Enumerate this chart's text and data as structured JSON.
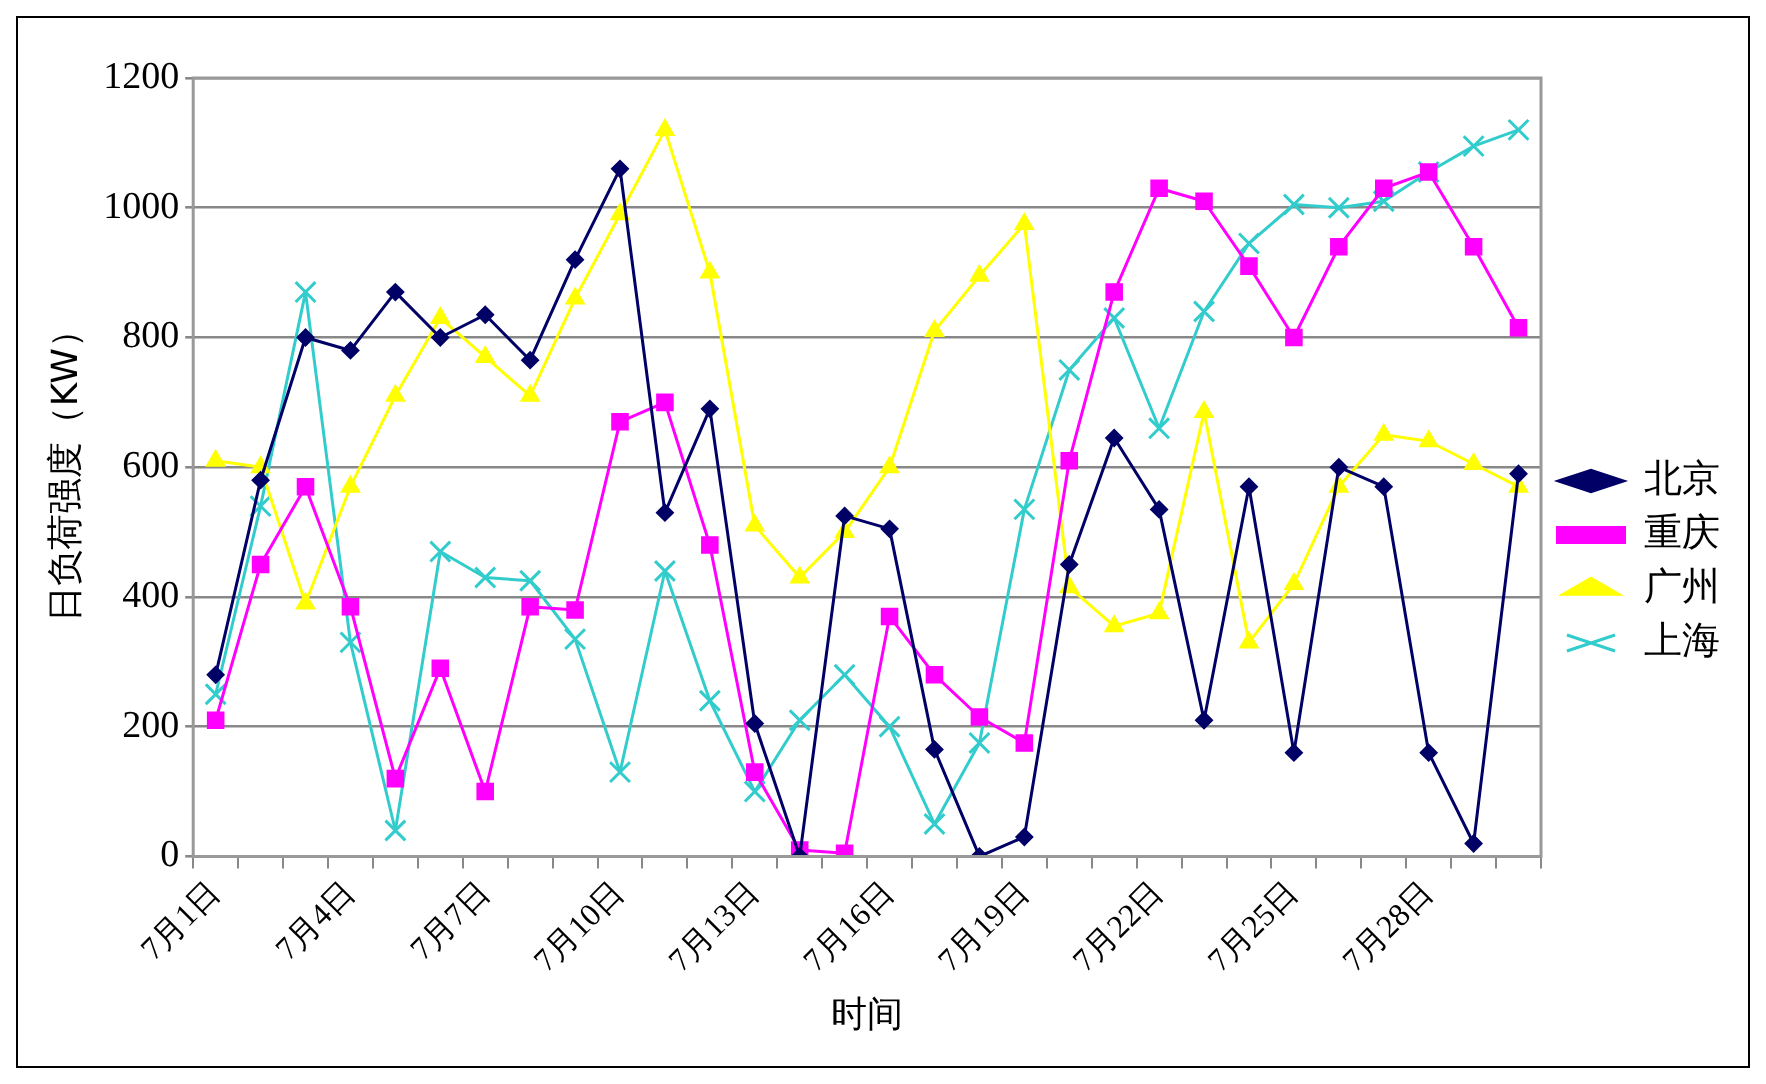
{
  "chart_data": {
    "type": "line",
    "xlabel": "时间",
    "ylabel": "日负荷强度（KW）",
    "categories": [
      "7月1日",
      null,
      null,
      "7月4日",
      null,
      null,
      "7月7日",
      null,
      null,
      "7月10日",
      null,
      null,
      "7月13日",
      null,
      null,
      "7月16日",
      null,
      null,
      "7月19日",
      null,
      null,
      "7月22日",
      null,
      null,
      "7月25日",
      null,
      null,
      "7月28日",
      null,
      null
    ],
    "series": [
      {
        "name": "北京",
        "color": "#000066",
        "marker": "diamond",
        "values": [
          280,
          580,
          800,
          780,
          870,
          800,
          835,
          765,
          920,
          1060,
          530,
          690,
          205,
          0,
          525,
          505,
          165,
          0,
          30,
          450,
          645,
          535,
          210,
          570,
          160,
          600,
          570,
          160,
          20,
          590
        ]
      },
      {
        "name": "重庆",
        "color": "#ff00ff",
        "marker": "square",
        "values": [
          210,
          450,
          570,
          385,
          120,
          290,
          100,
          385,
          380,
          670,
          700,
          480,
          130,
          10,
          5,
          370,
          280,
          215,
          175,
          610,
          870,
          1030,
          1010,
          910,
          800,
          940,
          1030,
          1055,
          940,
          815
        ]
      },
      {
        "name": "广州",
        "color": "#ffff00",
        "marker": "triangle",
        "values": [
          610,
          600,
          390,
          570,
          710,
          830,
          770,
          710,
          860,
          990,
          1120,
          900,
          510,
          430,
          500,
          600,
          810,
          895,
          975,
          415,
          355,
          375,
          685,
          330,
          420,
          570,
          650,
          640,
          605,
          570
        ]
      },
      {
        "name": "上海",
        "color": "#33cccc",
        "marker": "cross",
        "values": [
          250,
          540,
          870,
          330,
          40,
          470,
          430,
          425,
          335,
          130,
          440,
          240,
          100,
          210,
          280,
          200,
          50,
          175,
          535,
          750,
          830,
          660,
          840,
          945,
          1005,
          1000,
          1010,
          1055,
          1095,
          1120
        ]
      }
    ],
    "ylim": [
      0,
      1200
    ],
    "yticks": [
      0,
      200,
      400,
      600,
      800,
      1000,
      1200
    ],
    "grid": "y",
    "legend": "right",
    "line_style": "solid"
  }
}
